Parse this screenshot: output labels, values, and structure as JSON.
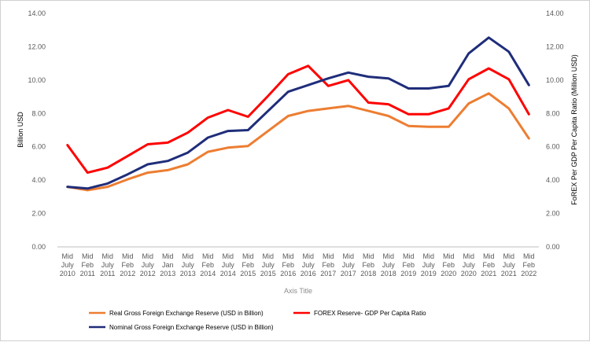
{
  "chart_data": {
    "type": "line",
    "xlabel": "Axis Title",
    "ylabel_left": "Billion USD",
    "ylabel_right": "FoREX Per GDP Per Capita Ratio (Million USD)",
    "ylim_left": [
      0,
      14
    ],
    "ylim_right": [
      0,
      14
    ],
    "grid": false,
    "legend_position": "bottom",
    "left_ticks": [
      "0.00",
      "2.00",
      "4.00",
      "6.00",
      "8.00",
      "10.00",
      "12.00",
      "14.00"
    ],
    "right_ticks": [
      "0.00",
      "2.00",
      "4.00",
      "6.00",
      "8.00",
      "10.00",
      "12.00",
      "14.00"
    ],
    "categories": [
      [
        "Mid",
        "July",
        "2010"
      ],
      [
        "Mid",
        "Feb",
        "2011"
      ],
      [
        "Mid",
        "July",
        "2011"
      ],
      [
        "Mid",
        "Feb",
        "2012"
      ],
      [
        "Mid",
        "July",
        "2012"
      ],
      [
        "Mid",
        "Jan",
        "2013"
      ],
      [
        "Mid",
        "July",
        "2013"
      ],
      [
        "Mid",
        "Feb",
        "2014"
      ],
      [
        "Mid",
        "July",
        "2014"
      ],
      [
        "Mid",
        "Feb",
        "2015"
      ],
      [
        "Mid",
        "July",
        "2015"
      ],
      [
        "Mid",
        "Feb",
        "2016"
      ],
      [
        "Mid",
        "July",
        "2016"
      ],
      [
        "Mid",
        "Feb",
        "2017"
      ],
      [
        "Mid",
        "July",
        "2017"
      ],
      [
        "Mid",
        "Feb",
        "2018"
      ],
      [
        "Mid",
        "July",
        "2018"
      ],
      [
        "Mid",
        "Feb",
        "2019"
      ],
      [
        "Mid",
        "July",
        "2019"
      ],
      [
        "Mid",
        "Feb",
        "2020"
      ],
      [
        "Mid",
        "July",
        "2020"
      ],
      [
        "Mid",
        "Feb",
        "2021"
      ],
      [
        "Mid",
        "July",
        "2021"
      ],
      [
        "Mid",
        "Feb",
        "2022"
      ]
    ],
    "series": [
      {
        "name": "Real Gross Foreign Exchange Reserve (USD in Billion)",
        "color": "#ED7D31",
        "axis": "left",
        "values": [
          3.6,
          3.4,
          3.6,
          4.05,
          4.45,
          4.6,
          4.95,
          5.7,
          5.95,
          6.05,
          6.95,
          7.85,
          8.15,
          8.3,
          8.45,
          8.15,
          7.85,
          7.25,
          7.2,
          7.2,
          8.6,
          9.2,
          8.3,
          6.5
        ]
      },
      {
        "name": "FOREX Reserve- GDP Per Capita Ratio",
        "color": "#FF0000",
        "axis": "right",
        "values": [
          6.1,
          4.45,
          4.75,
          5.45,
          6.15,
          6.25,
          6.85,
          7.75,
          8.2,
          7.8,
          9.05,
          10.35,
          10.85,
          9.65,
          10.0,
          8.65,
          8.55,
          7.95,
          7.95,
          8.3,
          10.05,
          10.7,
          10.05,
          7.95
        ]
      },
      {
        "name": "Nominal Gross Foreign Exchange Reserve (USD in Billion)",
        "color": "#1F2D7A",
        "axis": "left",
        "values": [
          3.6,
          3.5,
          3.8,
          4.35,
          4.95,
          5.15,
          5.65,
          6.55,
          6.95,
          7.0,
          8.15,
          9.3,
          9.7,
          10.1,
          10.45,
          10.2,
          10.1,
          9.5,
          9.5,
          9.65,
          11.6,
          12.55,
          11.7,
          9.7
        ]
      }
    ]
  }
}
